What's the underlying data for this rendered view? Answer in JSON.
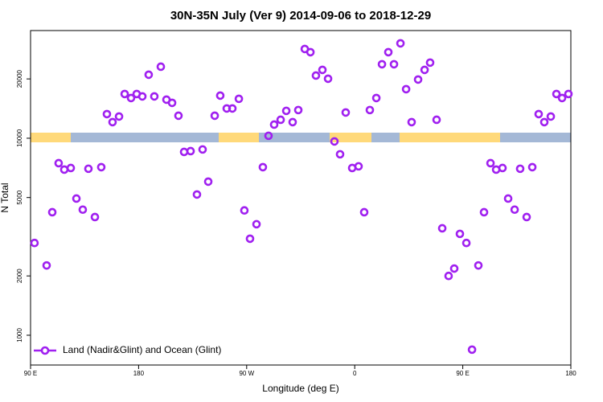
{
  "chart_data": {
    "type": "scatter",
    "title": "30N-35N July (Ver 9)   2014-09-06 to 2018-12-29",
    "xlabel": "Longitude (deg E)",
    "ylabel": "N Total",
    "log_y": true,
    "legend": "bottom left",
    "xlim": [
      90,
      540
    ],
    "xticks": [
      {
        "value": 90,
        "label": "90 E"
      },
      {
        "value": 180,
        "label": "180"
      },
      {
        "value": 270,
        "label": "90 W"
      },
      {
        "value": 360,
        "label": "0"
      },
      {
        "value": 450,
        "label": "90 E"
      },
      {
        "value": 540,
        "label": "180"
      }
    ],
    "ylim": [
      706,
      35200
    ],
    "yticks": [
      1000,
      2000,
      5000,
      10000,
      20000
    ],
    "x": [
      93.3,
      103.4,
      108.1,
      113.4,
      118.1,
      123.5,
      128.2,
      133.5,
      138.2,
      143.6,
      148.9,
      153.6,
      158.3,
      163.7,
      168.4,
      173.7,
      178.4,
      183.1,
      188.4,
      193.1,
      198.5,
      203.2,
      207.9,
      213.2,
      217.9,
      223.3,
      228.6,
      233.3,
      238,
      243.4,
      248,
      253.4,
      258.1,
      263.5,
      268.1,
      272.8,
      278.2,
      283.5,
      288.2,
      292.9,
      298.3,
      303,
      308.3,
      313,
      318.4,
      323.1,
      327.7,
      333.1,
      337.8,
      343.1,
      347.8,
      352.5,
      357.9,
      363.2,
      367.9,
      372.6,
      378,
      382.7,
      388,
      392.7,
      398.1,
      402.8,
      407.4,
      412.8,
      418.2,
      422.8,
      428.2,
      432.9,
      438.2,
      442.9,
      447.6,
      453,
      457.7,
      463,
      467.7,
      473.1,
      477.8,
      483.1,
      487.8,
      493.2,
      497.8,
      503.2,
      507.9,
      513.2,
      517.9,
      523.3,
      528,
      532.7,
      538
    ],
    "series": [
      {
        "name": "Land (Nadir&Glint) and Ocean (Glint)",
        "color": "#a020f0",
        "values": [
          2940,
          2260,
          4210,
          7470,
          6930,
          7060,
          4940,
          4340,
          7000,
          3980,
          7130,
          13260,
          12070,
          12890,
          16770,
          16000,
          16770,
          16300,
          21010,
          16300,
          23070,
          15700,
          15120,
          13010,
          8520,
          8600,
          5180,
          8770,
          6020,
          13010,
          16460,
          14160,
          14160,
          15850,
          4300,
          3090,
          3660,
          7130,
          10290,
          11730,
          12410,
          13770,
          12070,
          13900,
          28380,
          27340,
          20800,
          22230,
          20050,
          9630,
          8290,
          13510,
          7060,
          7200,
          4210,
          13900,
          16000,
          23740,
          27340,
          23740,
          30310,
          17740,
          12070,
          19860,
          22230,
          24200,
          12410,
          3490,
          2000,
          2180,
          3270,
          2940,
          845,
          2260,
          4210,
          7470,
          6930,
          7060,
          4940,
          4340,
          7000,
          3980,
          7130,
          13260,
          12070,
          12890,
          16770,
          16000,
          16770
        ]
      }
    ]
  }
}
